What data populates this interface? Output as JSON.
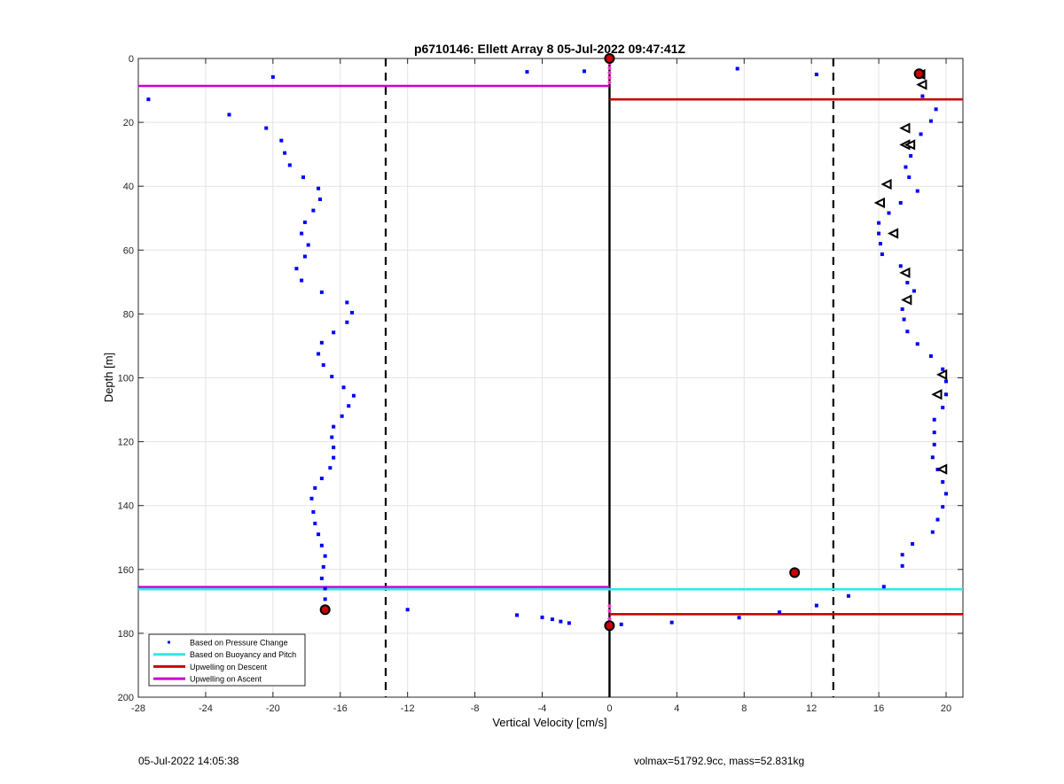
{
  "chart_data": {
    "type": "scatter",
    "title": "p6710146: Ellett Array 8 05-Jul-2022 09:47:41Z",
    "xlabel": "Vertical Velocity [cm/s]",
    "ylabel": "Depth [m]",
    "xlim": [
      -28,
      21
    ],
    "ylim": [
      0,
      200
    ],
    "y_reversed": true,
    "grid": true,
    "x_ticks": [
      -28,
      -24,
      -20,
      -16,
      -12,
      -8,
      -4,
      0,
      4,
      8,
      12,
      16,
      20
    ],
    "y_ticks": [
      0,
      20,
      40,
      60,
      80,
      100,
      120,
      140,
      160,
      180,
      200
    ],
    "legend_location": "bottom-left",
    "legend": [
      {
        "label": "Based on Pressure Change",
        "style": "dot",
        "color": "#0000ff"
      },
      {
        "label": "Based on Buoyancy and Pitch",
        "style": "line",
        "color": "#33e6e6"
      },
      {
        "label": "Upwelling on Descent",
        "style": "line",
        "color": "#cc0000"
      },
      {
        "label": "Upwelling on Ascent",
        "style": "line",
        "color": "#cc00cc"
      }
    ],
    "series": [
      {
        "name": "Based on Pressure Change",
        "kind": "scatter",
        "color": "#0000ff",
        "points": [
          [
            -27.4,
            12.8
          ],
          [
            -22.6,
            17.6
          ],
          [
            -20.4,
            21.8
          ],
          [
            -20.0,
            5.8
          ],
          [
            -19.5,
            25.7
          ],
          [
            -19.3,
            29.6
          ],
          [
            -19.0,
            33.4
          ],
          [
            -18.2,
            37.2
          ],
          [
            -17.3,
            40.7
          ],
          [
            -17.2,
            44.1
          ],
          [
            -17.6,
            47.6
          ],
          [
            -18.1,
            51.3
          ],
          [
            -18.3,
            54.8
          ],
          [
            -17.9,
            58.4
          ],
          [
            -18.1,
            62.0
          ],
          [
            -18.6,
            65.8
          ],
          [
            -18.3,
            69.5
          ],
          [
            -17.1,
            73.2
          ],
          [
            -15.6,
            76.4
          ],
          [
            -15.3,
            79.6
          ],
          [
            -15.6,
            82.6
          ],
          [
            -16.4,
            85.8
          ],
          [
            -17.1,
            89.0
          ],
          [
            -17.3,
            92.5
          ],
          [
            -17.0,
            96.0
          ],
          [
            -16.5,
            99.6
          ],
          [
            -15.8,
            103.0
          ],
          [
            -15.2,
            105.6
          ],
          [
            -15.5,
            108.8
          ],
          [
            -15.9,
            112.0
          ],
          [
            -16.4,
            115.3
          ],
          [
            -16.5,
            118.6
          ],
          [
            -16.4,
            121.8
          ],
          [
            -16.4,
            125.0
          ],
          [
            -16.6,
            128.2
          ],
          [
            -17.1,
            131.5
          ],
          [
            -17.5,
            134.5
          ],
          [
            -17.7,
            137.8
          ],
          [
            -17.6,
            142.0
          ],
          [
            -17.5,
            145.6
          ],
          [
            -17.3,
            149.0
          ],
          [
            -17.1,
            152.5
          ],
          [
            -16.9,
            155.8
          ],
          [
            -17.0,
            159.2
          ],
          [
            -17.1,
            162.8
          ],
          [
            -16.9,
            166.0
          ],
          [
            -16.9,
            169.3
          ],
          [
            -12.0,
            172.6
          ],
          [
            -5.5,
            174.3
          ],
          [
            -4.0,
            175.0
          ],
          [
            -3.4,
            175.6
          ],
          [
            -2.9,
            176.3
          ],
          [
            -2.4,
            176.8
          ],
          [
            -4.9,
            4.2
          ],
          [
            -1.5,
            4.0
          ],
          [
            0.7,
            177.2
          ],
          [
            3.7,
            176.6
          ],
          [
            7.6,
            3.2
          ],
          [
            7.7,
            175.1
          ],
          [
            10.1,
            173.4
          ],
          [
            12.3,
            5.0
          ],
          [
            12.3,
            171.3
          ],
          [
            14.2,
            168.3
          ],
          [
            16.3,
            165.4
          ],
          [
            17.4,
            158.9
          ],
          [
            17.4,
            155.4
          ],
          [
            18.0,
            152.0
          ],
          [
            19.2,
            148.3
          ],
          [
            19.5,
            144.4
          ],
          [
            19.8,
            140.4
          ],
          [
            20.0,
            136.3
          ],
          [
            19.8,
            132.6
          ],
          [
            19.5,
            128.7
          ],
          [
            19.2,
            124.9
          ],
          [
            19.3,
            120.9
          ],
          [
            19.3,
            117.1
          ],
          [
            19.3,
            113.1
          ],
          [
            19.8,
            109.3
          ],
          [
            20.0,
            105.2
          ],
          [
            20.0,
            101.1
          ],
          [
            19.8,
            97.3
          ],
          [
            19.1,
            93.2
          ],
          [
            18.3,
            89.4
          ],
          [
            17.7,
            85.5
          ],
          [
            17.5,
            81.7
          ],
          [
            17.4,
            78.5
          ],
          [
            18.1,
            72.8
          ],
          [
            17.7,
            70.2
          ],
          [
            17.3,
            65.0
          ],
          [
            16.2,
            61.3
          ],
          [
            16.1,
            58.0
          ],
          [
            16.0,
            54.8
          ],
          [
            16.0,
            51.5
          ],
          [
            16.6,
            48.4
          ],
          [
            17.3,
            45.2
          ],
          [
            18.3,
            41.5
          ],
          [
            17.8,
            37.2
          ],
          [
            17.6,
            34.0
          ],
          [
            17.9,
            30.5
          ],
          [
            17.9,
            27.0
          ],
          [
            18.5,
            23.7
          ],
          [
            19.1,
            19.6
          ],
          [
            19.4,
            15.9
          ],
          [
            18.6,
            11.8
          ],
          [
            18.5,
            8.2
          ],
          [
            18.3,
            5.0
          ]
        ]
      },
      {
        "name": "Buoyancy and pitch",
        "kind": "triangles",
        "color": "#000000",
        "points": [
          [
            18.6,
            8.2
          ],
          [
            17.6,
            21.8
          ],
          [
            17.6,
            27.0
          ],
          [
            16.5,
            39.4
          ],
          [
            16.1,
            45.2
          ],
          [
            16.9,
            54.8
          ],
          [
            17.6,
            67.1
          ],
          [
            17.7,
            75.6
          ],
          [
            19.8,
            99.0
          ],
          [
            19.5,
            105.2
          ],
          [
            19.8,
            128.6
          ],
          [
            18.5,
            5.0
          ],
          [
            17.9,
            27.0
          ]
        ]
      },
      {
        "name": "Markers",
        "kind": "star-markers",
        "color": "#cc0000",
        "points": [
          [
            0.0,
            0.0
          ],
          [
            18.4,
            4.8
          ],
          [
            -16.9,
            172.6
          ],
          [
            0.0,
            177.6
          ],
          [
            11.0,
            161.0
          ]
        ]
      }
    ],
    "lines": [
      {
        "name": "Upwelling on Ascent",
        "color": "#cc00cc",
        "depth": 8.6,
        "x_from": -28,
        "x_to": 0
      },
      {
        "name": "Upwelling on Ascent",
        "color": "#cc00cc",
        "depth": 165.5,
        "x_from": -28,
        "x_to": 0
      },
      {
        "name": "Based on Buoyancy and Pitch",
        "color": "#33e6e6",
        "depth": 166.2,
        "x_from": -28,
        "x_to": 21
      },
      {
        "name": "Upwelling on Descent",
        "color": "#cc0000",
        "depth": 12.8,
        "x_from": 0,
        "x_to": 21
      },
      {
        "name": "Upwelling on Descent",
        "color": "#cc0000",
        "depth": 174.0,
        "x_from": 0,
        "x_to": 21
      }
    ],
    "vertical_lines": [
      {
        "x": -13.3,
        "style": "dashed",
        "color": "#000000"
      },
      {
        "x": 13.3,
        "style": "dashed",
        "color": "#000000"
      },
      {
        "x": 0,
        "style": "solid",
        "color": "#000000"
      }
    ]
  },
  "footer": {
    "left": "05-Jul-2022 14:05:38",
    "right": "volmax=51792.9cc, mass=52.831kg"
  }
}
